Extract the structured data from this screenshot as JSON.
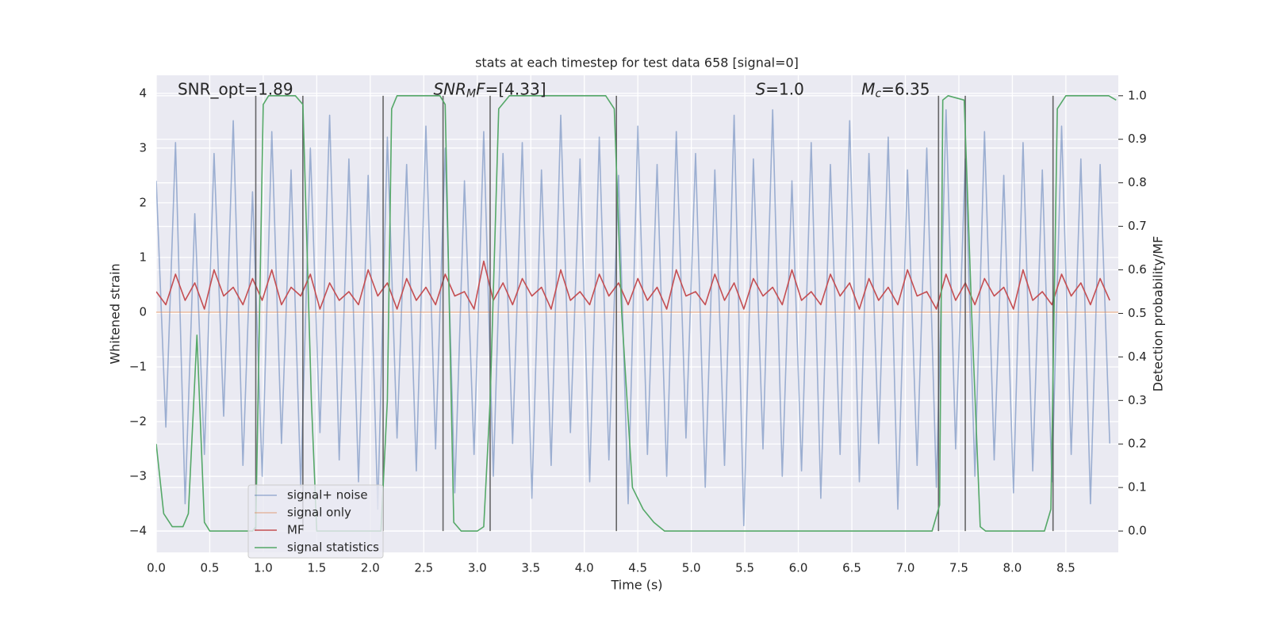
{
  "chart_data": {
    "type": "line",
    "title": "stats at each timestep for test data 658 [signal=0]",
    "xlabel": "Time (s)",
    "ylabel": "Whitened strain",
    "y2label": "Detection probability/MF",
    "grid": true,
    "background": "#eaeaf2",
    "legend": "lower left",
    "xlim": [
      0,
      8.99
    ],
    "ylim": [
      -4.39,
      4.33
    ],
    "y2lim": [
      -0.049,
      1.047
    ],
    "xticks": [
      {
        "value": 0,
        "label": "0.0"
      },
      0.5,
      {
        "value": 1,
        "label": "1.0"
      },
      1.5,
      {
        "value": 2,
        "label": "2.0"
      },
      2.5,
      {
        "value": 3,
        "label": "3.0"
      },
      3.5,
      {
        "value": 4,
        "label": "4.0"
      },
      4.5,
      {
        "value": 5,
        "label": "5.0"
      },
      5.5,
      {
        "value": 6,
        "label": "6.0"
      },
      6.5,
      {
        "value": 7,
        "label": "7.0"
      },
      7.5,
      {
        "value": 8,
        "label": "8.0"
      },
      8.5
    ],
    "yticks": [
      {
        "value": -4,
        "label": "−4"
      },
      {
        "value": -3,
        "label": "−3"
      },
      {
        "value": -2,
        "label": "−2"
      },
      {
        "value": -1,
        "label": "−1"
      },
      0,
      1,
      2,
      3,
      4
    ],
    "y2ticks": [
      {
        "value": 0,
        "label": "0.0"
      },
      0.1,
      0.2,
      0.3,
      0.4,
      0.5,
      0.6,
      0.7,
      0.8,
      0.9,
      {
        "value": 1,
        "label": "1.0"
      }
    ],
    "x": [
      0,
      0.09,
      0.18,
      0.27,
      0.36,
      0.45,
      0.54,
      0.63,
      0.72,
      0.81,
      0.9,
      0.99,
      1.08,
      1.17,
      1.26,
      1.35,
      1.44,
      1.53,
      1.62,
      1.71,
      1.8,
      1.89,
      1.98,
      2.07,
      2.16,
      2.25,
      2.34,
      2.43,
      2.52,
      2.61,
      2.7,
      2.79,
      2.88,
      2.97,
      3.06,
      3.15,
      3.24,
      3.33,
      3.42,
      3.51,
      3.6,
      3.69,
      3.78,
      3.87,
      3.96,
      4.05,
      4.14,
      4.23,
      4.32,
      4.41,
      4.5,
      4.59,
      4.68,
      4.77,
      4.86,
      4.95,
      5.04,
      5.13,
      5.22,
      5.31,
      5.4,
      5.49,
      5.58,
      5.67,
      5.76,
      5.85,
      5.94,
      6.03,
      6.12,
      6.21,
      6.3,
      6.39,
      6.48,
      6.57,
      6.66,
      6.75,
      6.84,
      6.93,
      7.02,
      7.11,
      7.2,
      7.29,
      7.38,
      7.47,
      7.56,
      7.65,
      7.74,
      7.83,
      7.92,
      8.01,
      8.1,
      8.19,
      8.28,
      8.37,
      8.46,
      8.55,
      8.64,
      8.73,
      8.82,
      8.91
    ],
    "series": [
      {
        "name": "signal+ noise",
        "color": "#4c72b0",
        "opacity": 0.5,
        "axis": "y",
        "values": [
          2.4,
          -2.1,
          3.1,
          -3.5,
          1.8,
          -2.6,
          2.9,
          -1.9,
          3.5,
          -2.8,
          2.2,
          -3.0,
          3.3,
          -2.4,
          2.6,
          -3.2,
          3.0,
          -2.2,
          3.6,
          -2.7,
          2.8,
          -3.1,
          2.5,
          -3.6,
          3.2,
          -2.3,
          2.7,
          -2.9,
          3.4,
          -2.5,
          3.0,
          -3.3,
          2.4,
          -2.6,
          3.3,
          -3.0,
          2.9,
          -2.4,
          3.1,
          -3.4,
          2.6,
          -2.8,
          3.6,
          -2.2,
          2.8,
          -3.1,
          3.2,
          -2.7,
          2.5,
          -3.5,
          3.4,
          -2.6,
          2.7,
          -3.0,
          3.3,
          -2.3,
          2.9,
          -3.2,
          2.6,
          -2.8,
          3.6,
          -3.9,
          2.8,
          -2.5,
          3.7,
          -3.0,
          2.4,
          -2.9,
          3.1,
          -3.4,
          2.7,
          -2.6,
          3.5,
          -3.1,
          2.9,
          -2.4,
          3.2,
          -3.6,
          2.6,
          -2.8,
          3.0,
          -3.2,
          3.7,
          -2.5,
          2.8,
          -3.0,
          3.3,
          -2.7,
          2.5,
          -3.3,
          3.1,
          -2.9,
          2.6,
          -3.1,
          3.4,
          -2.6,
          2.8,
          -3.5,
          2.7,
          -2.4
        ]
      },
      {
        "name": "signal only",
        "color": "#dd8452",
        "opacity": 0.5,
        "axis": "y",
        "x": [
          0,
          8.99
        ],
        "values": [
          0,
          0
        ]
      },
      {
        "name": "MF",
        "color": "#c44e52",
        "opacity": 1,
        "axis": "y2",
        "values": [
          0.55,
          0.52,
          0.59,
          0.53,
          0.57,
          0.51,
          0.6,
          0.54,
          0.56,
          0.52,
          0.58,
          0.53,
          0.6,
          0.52,
          0.56,
          0.54,
          0.59,
          0.51,
          0.57,
          0.53,
          0.55,
          0.52,
          0.6,
          0.54,
          0.57,
          0.51,
          0.58,
          0.53,
          0.56,
          0.52,
          0.59,
          0.54,
          0.55,
          0.51,
          0.62,
          0.53,
          0.57,
          0.52,
          0.58,
          0.54,
          0.56,
          0.51,
          0.6,
          0.53,
          0.55,
          0.52,
          0.59,
          0.54,
          0.57,
          0.52,
          0.58,
          0.53,
          0.56,
          0.51,
          0.6,
          0.54,
          0.55,
          0.52,
          0.59,
          0.53,
          0.57,
          0.51,
          0.58,
          0.54,
          0.56,
          0.52,
          0.6,
          0.53,
          0.55,
          0.52,
          0.59,
          0.54,
          0.57,
          0.51,
          0.58,
          0.53,
          0.56,
          0.52,
          0.6,
          0.54,
          0.55,
          0.51,
          0.59,
          0.53,
          0.57,
          0.52,
          0.58,
          0.54,
          0.56,
          0.51,
          0.6,
          0.53,
          0.55,
          0.52,
          0.59,
          0.54,
          0.57,
          0.52,
          0.58,
          0.53
        ]
      },
      {
        "name": "signal statistics",
        "color": "#55a868",
        "opacity": 1,
        "axis": "y2",
        "x": [
          0,
          0.07,
          0.15,
          0.25,
          0.3,
          0.38,
          0.45,
          0.5,
          0.9,
          0.93,
          1.0,
          1.05,
          1.3,
          1.37,
          1.45,
          1.5,
          2.1,
          2.16,
          2.2,
          2.25,
          2.65,
          2.7,
          2.78,
          2.85,
          3.0,
          3.06,
          3.12,
          3.2,
          3.3,
          4.2,
          4.28,
          4.35,
          4.45,
          4.55,
          4.65,
          4.75,
          7.25,
          7.32,
          7.35,
          7.4,
          7.55,
          7.62,
          7.7,
          7.75,
          8.3,
          8.36,
          8.42,
          8.5,
          8.9,
          8.97
        ],
        "values": [
          0.2,
          0.04,
          0.01,
          0.01,
          0.04,
          0.45,
          0.02,
          0,
          0,
          0.01,
          0.98,
          1,
          1,
          0.98,
          0.3,
          0,
          0,
          0.3,
          0.97,
          1,
          1,
          0.98,
          0.02,
          0,
          0,
          0.01,
          0.3,
          0.97,
          1,
          1,
          0.97,
          0.5,
          0.1,
          0.05,
          0.02,
          0,
          0,
          0.06,
          0.99,
          1,
          0.99,
          0.5,
          0.01,
          0,
          0,
          0.05,
          0.97,
          1,
          1,
          0.99
        ]
      }
    ],
    "vlines": [
      0.93,
      1.37,
      2.12,
      2.68,
      3.12,
      4.3,
      7.31,
      7.56,
      8.38
    ],
    "annotations": [
      {
        "x": 0.2,
        "y": 4.06,
        "parts": [
          {
            "text": "SNR_opt=1.89"
          }
        ]
      },
      {
        "x": 2.59,
        "y": 4.06,
        "parts": [
          {
            "text": "SNR",
            "italic": true
          },
          {
            "text": "M",
            "italic": true,
            "sub": true
          },
          {
            "text": "F",
            "italic": true
          },
          {
            "text": "=[4.33]"
          }
        ]
      },
      {
        "x": 5.6,
        "y": 4.06,
        "parts": [
          {
            "text": "S",
            "italic": true
          },
          {
            "text": "=1.0"
          }
        ]
      },
      {
        "x": 6.59,
        "y": 4.06,
        "parts": [
          {
            "text": "M",
            "italic": true
          },
          {
            "text": "c",
            "italic": true,
            "sub": true
          },
          {
            "text": "=6.35"
          }
        ]
      }
    ]
  }
}
